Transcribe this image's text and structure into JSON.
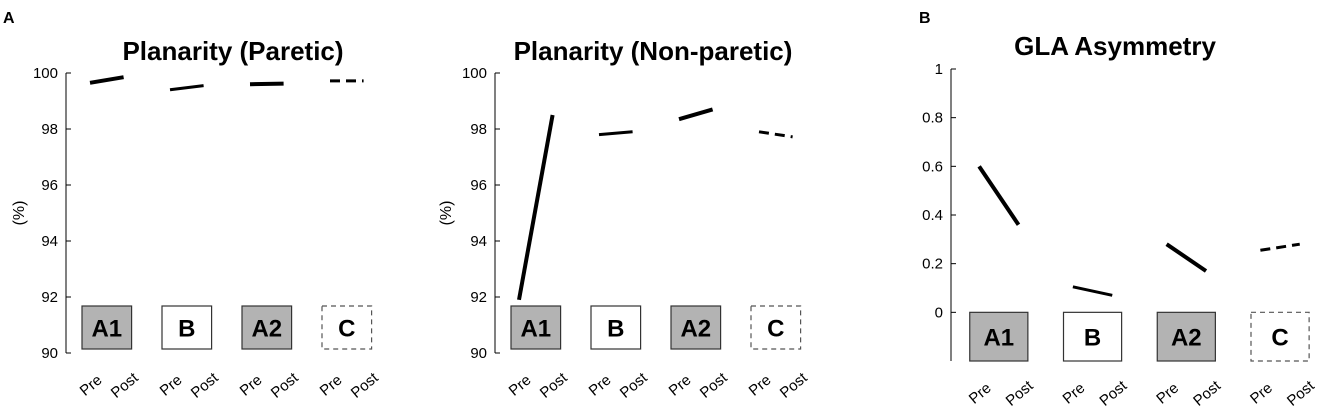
{
  "panel_labels": [
    "A",
    "B"
  ],
  "x_tick_labels": [
    "Pre",
    "Post"
  ],
  "chart_data": [
    {
      "type": "line",
      "panel": "A",
      "title": "Planarity (Paretic)",
      "ylabel": "(%)",
      "ylim": [
        90,
        100
      ],
      "yticks": [
        90,
        92,
        94,
        96,
        98,
        100
      ],
      "conditions": [
        {
          "label": "A1",
          "style": "solid",
          "width": "thick",
          "fill": "gray",
          "pre": 99.65,
          "post": 99.85
        },
        {
          "label": "B",
          "style": "solid",
          "width": "medium",
          "fill": "white",
          "pre": 99.4,
          "post": 99.55
        },
        {
          "label": "A2",
          "style": "solid",
          "width": "thick",
          "fill": "gray",
          "pre": 99.6,
          "post": 99.62
        },
        {
          "label": "C",
          "style": "dashed",
          "width": "medium",
          "fill": "white-dashed",
          "pre": 99.72,
          "post": 99.72
        }
      ]
    },
    {
      "type": "line",
      "panel": "A",
      "title": "Planarity (Non-paretic)",
      "ylabel": "(%)",
      "ylim": [
        90,
        100
      ],
      "yticks": [
        90,
        92,
        94,
        96,
        98,
        100
      ],
      "conditions": [
        {
          "label": "A1",
          "style": "solid",
          "width": "thick",
          "fill": "gray",
          "pre": 91.9,
          "post": 98.5
        },
        {
          "label": "B",
          "style": "solid",
          "width": "medium",
          "fill": "white",
          "pre": 97.8,
          "post": 97.9
        },
        {
          "label": "A2",
          "style": "solid",
          "width": "thick",
          "fill": "gray",
          "pre": 98.35,
          "post": 98.7
        },
        {
          "label": "C",
          "style": "dashed",
          "width": "medium",
          "fill": "white-dashed",
          "pre": 97.9,
          "post": 97.72
        }
      ]
    },
    {
      "type": "line",
      "panel": "B",
      "title": "GLA Asymmetry",
      "ylabel": "",
      "ylim": [
        -0.2,
        1
      ],
      "yticks": [
        0,
        0.2,
        0.4,
        0.6,
        0.8,
        1
      ],
      "conditions": [
        {
          "label": "A1",
          "style": "solid",
          "width": "thick",
          "fill": "gray",
          "pre": 0.6,
          "post": 0.36
        },
        {
          "label": "B",
          "style": "solid",
          "width": "medium",
          "fill": "white",
          "pre": 0.105,
          "post": 0.07
        },
        {
          "label": "A2",
          "style": "solid",
          "width": "thick",
          "fill": "gray",
          "pre": 0.28,
          "post": 0.17
        },
        {
          "label": "C",
          "style": "dashed",
          "width": "medium",
          "fill": "white-dashed",
          "pre": 0.255,
          "post": 0.28
        }
      ]
    }
  ]
}
